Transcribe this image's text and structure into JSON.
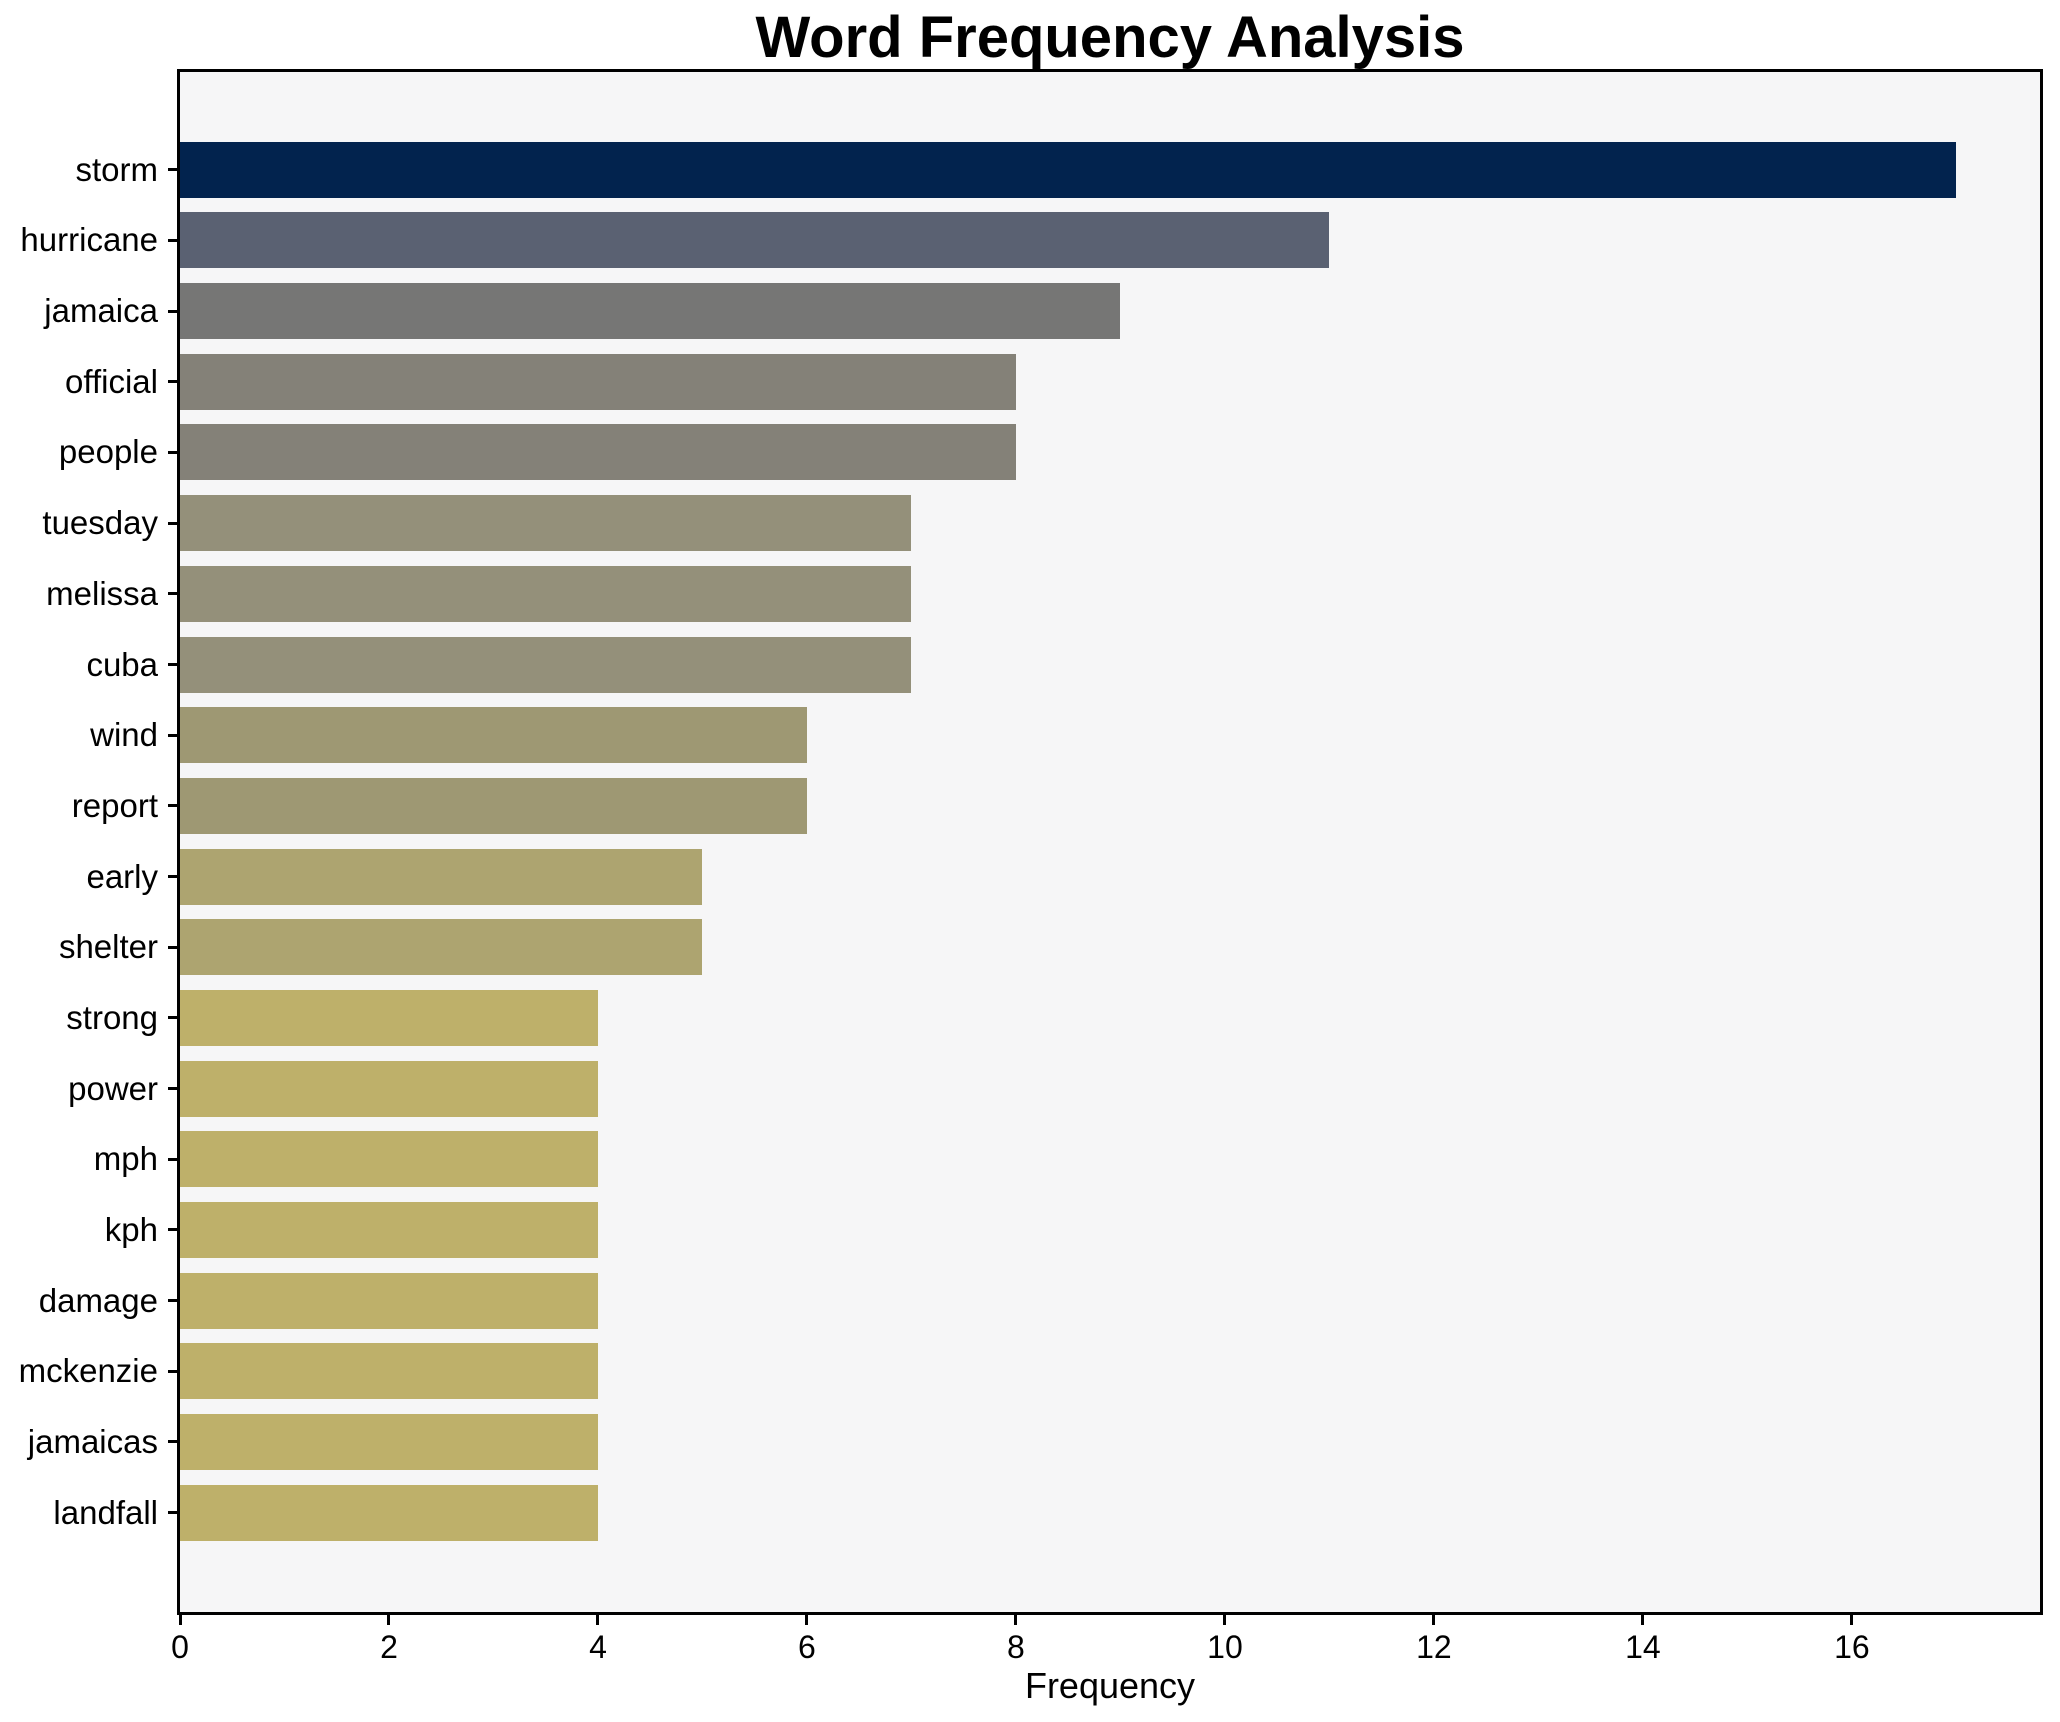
{
  "chart_data": {
    "type": "bar",
    "orientation": "horizontal",
    "title": "Word Frequency Analysis",
    "xlabel": "Frequency",
    "ylabel": "",
    "categories": [
      "storm",
      "hurricane",
      "jamaica",
      "official",
      "people",
      "tuesday",
      "melissa",
      "cuba",
      "wind",
      "report",
      "early",
      "shelter",
      "strong",
      "power",
      "mph",
      "kph",
      "damage",
      "mckenzie",
      "jamaicas",
      "landfall"
    ],
    "values": [
      17,
      11,
      9,
      8,
      8,
      7,
      7,
      7,
      6,
      6,
      5,
      5,
      4,
      4,
      4,
      4,
      4,
      4,
      4,
      4
    ],
    "bar_colors": [
      "#02234e",
      "#5a6172",
      "#767675",
      "#848178",
      "#848178",
      "#94907a",
      "#94907a",
      "#94907a",
      "#9e9873",
      "#9e9873",
      "#ada470",
      "#ada470",
      "#beb06a",
      "#beb06a",
      "#beb06a",
      "#beb06a",
      "#beb06a",
      "#beb06a",
      "#beb06a",
      "#beb06a"
    ],
    "x_ticks": [
      0,
      2,
      4,
      6,
      8,
      10,
      12,
      14,
      16
    ],
    "xlim": [
      0,
      17.8
    ],
    "grid": false,
    "legend": null,
    "plot_background": "#f6f6f7",
    "figure_background": "#ffffff",
    "spine_color": "#000000",
    "text_color": "#000000"
  }
}
